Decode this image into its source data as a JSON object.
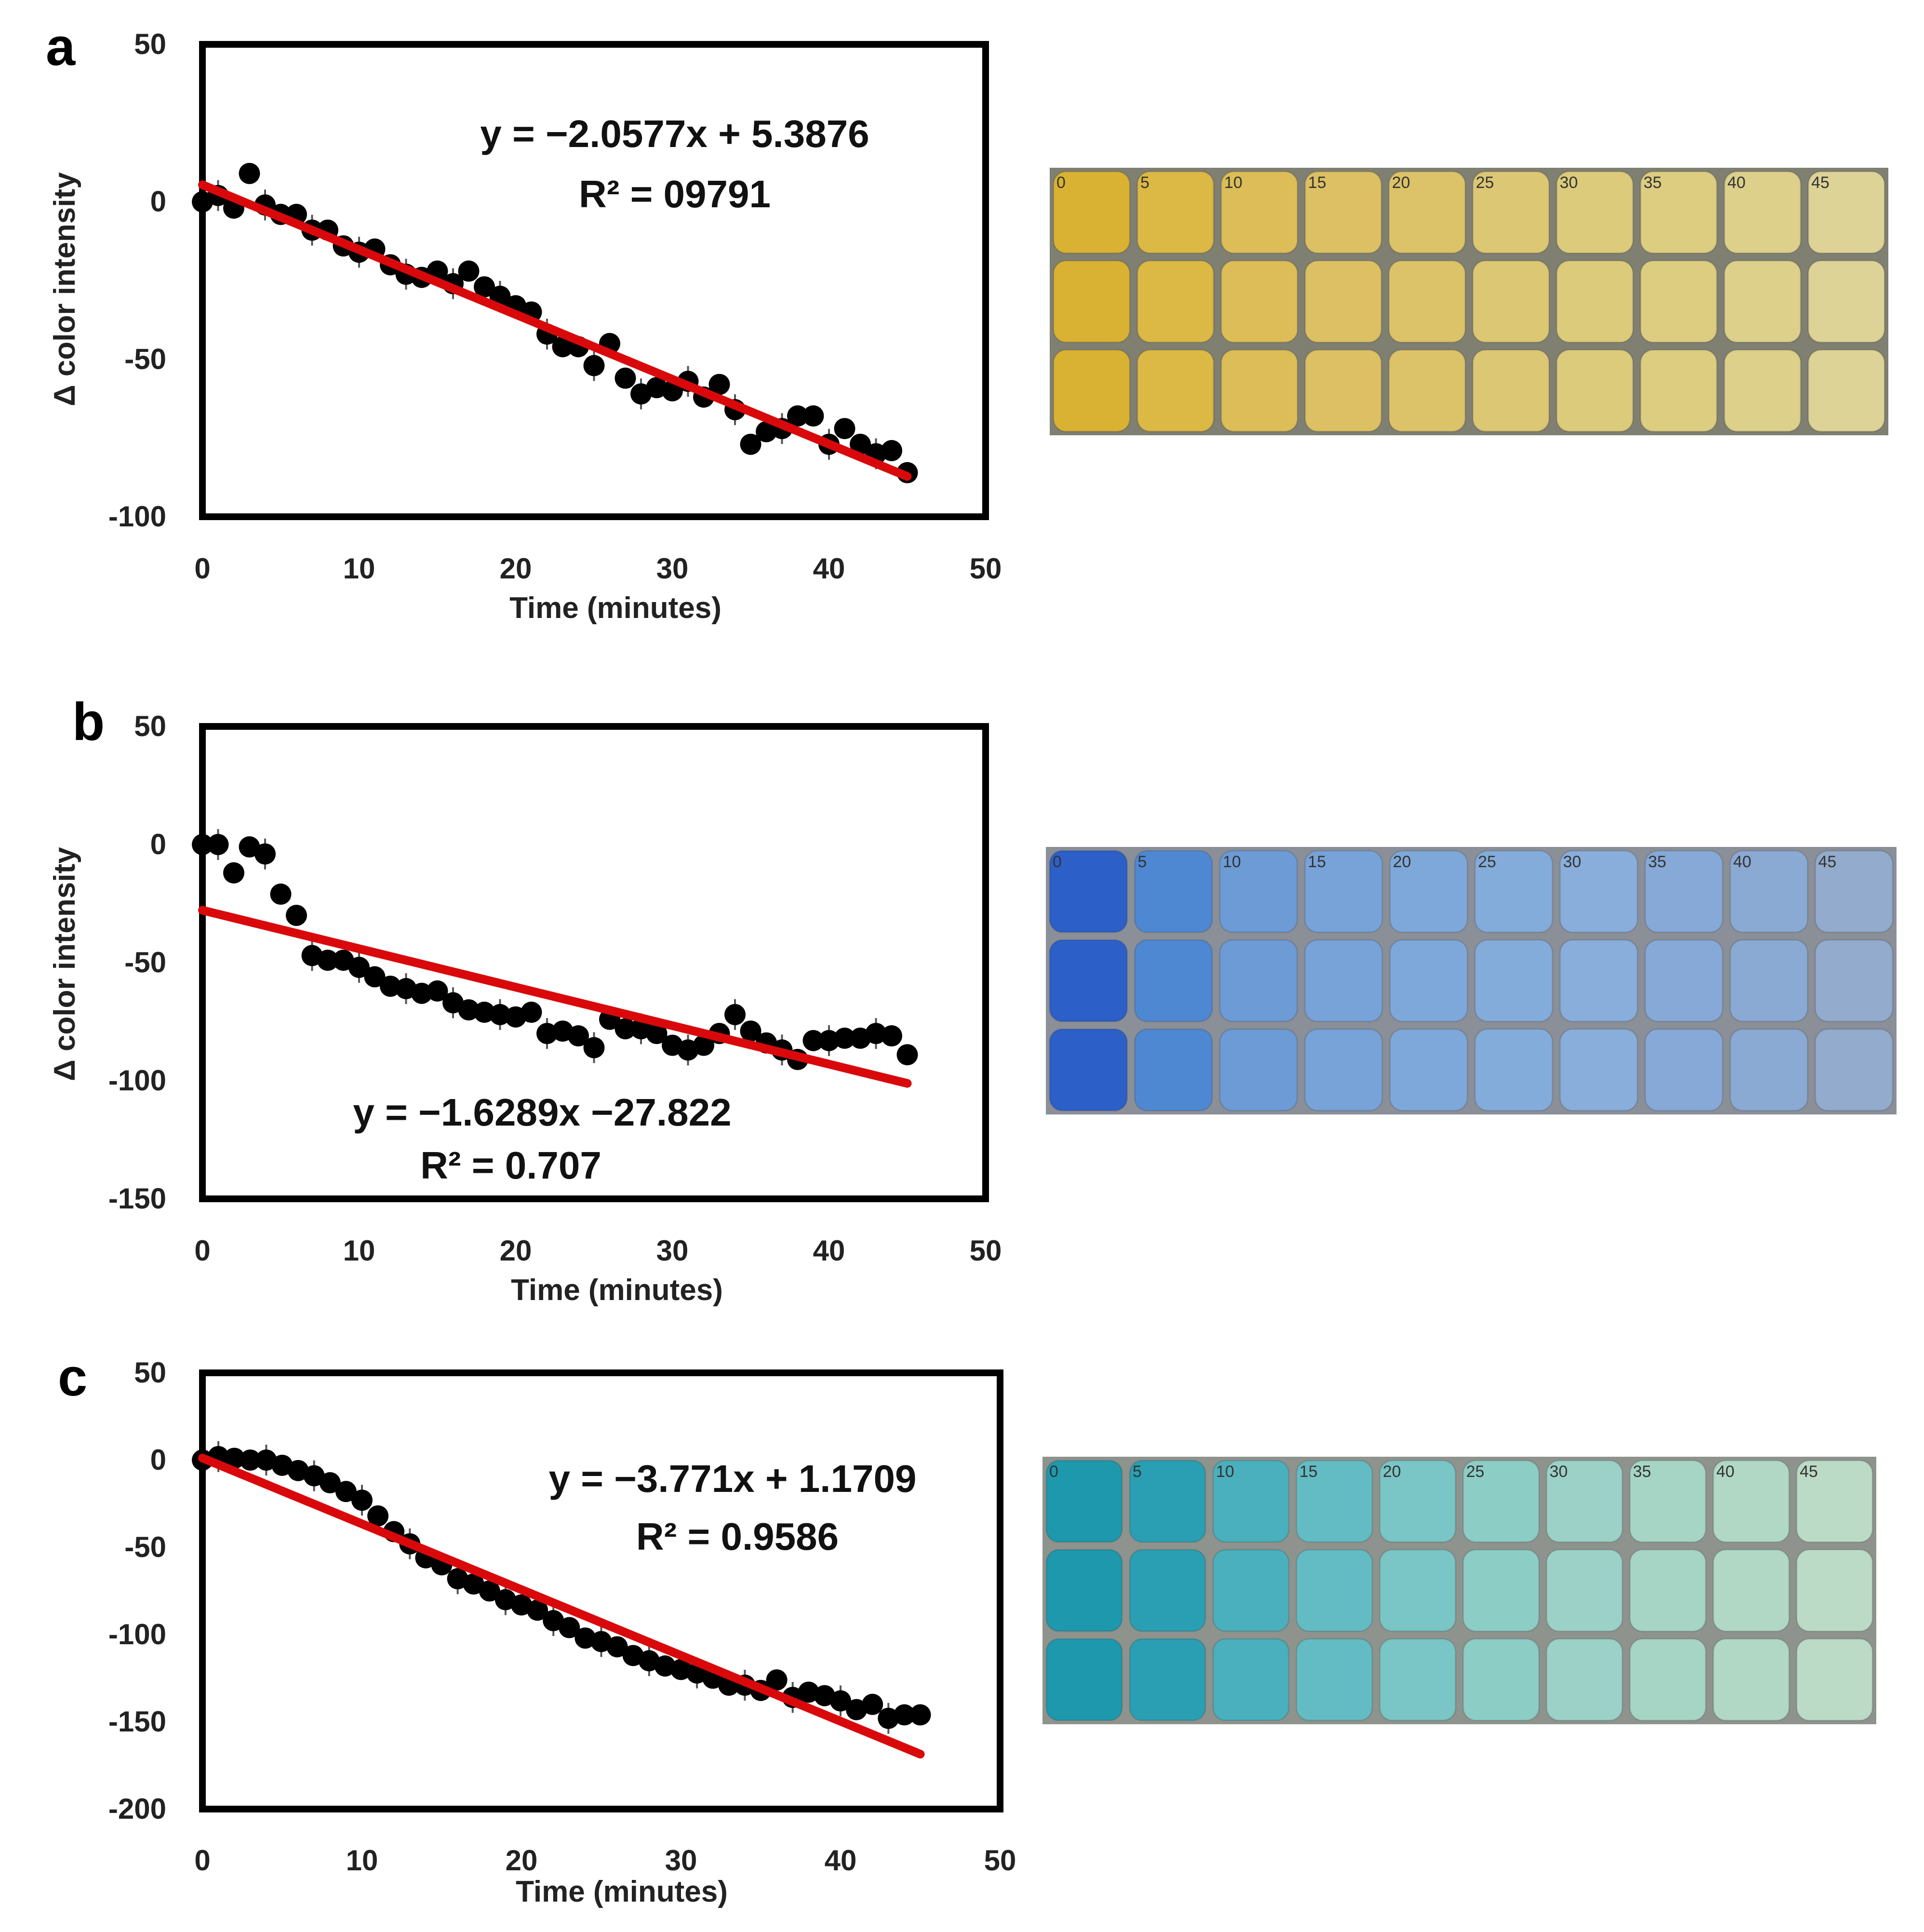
{
  "chart_data": [
    {
      "type": "scatter",
      "letter": "a",
      "title": "",
      "xlabel": "Time (minutes)",
      "ylabel": "Δ color intensity",
      "xlim": [
        0,
        50
      ],
      "ylim": [
        -100,
        50
      ],
      "xticks": [
        0,
        10,
        20,
        30,
        40,
        50
      ],
      "yticks": [
        50,
        0,
        -50,
        -100
      ],
      "equation": "y = −2.0577x + 5.3876",
      "r2": "R² = 09791",
      "trend": {
        "slope": -2.0577,
        "intercept": 5.3876,
        "x0": 0,
        "x1": 45
      },
      "series": [
        {
          "name": "Δ color intensity",
          "x": [
            0,
            1,
            2,
            3,
            4,
            5,
            6,
            7,
            8,
            9,
            10,
            11,
            12,
            13,
            14,
            15,
            16,
            17,
            18,
            19,
            20,
            21,
            22,
            23,
            24,
            25,
            26,
            27,
            28,
            29,
            30,
            31,
            32,
            33,
            34,
            35,
            36,
            37,
            38,
            39,
            40,
            41,
            42,
            43,
            44,
            45
          ],
          "y": [
            0,
            2,
            -2,
            9,
            -1,
            -4,
            -4,
            -9,
            -9,
            -14,
            -16,
            -15,
            -20,
            -23,
            -24,
            -22,
            -26,
            -22,
            -27,
            -30,
            -33,
            -35,
            -42,
            -46,
            -46,
            -52,
            -45,
            -56,
            -61,
            -59,
            -60,
            -57,
            -62,
            -58,
            -66,
            -77,
            -73,
            -72,
            -68,
            -68,
            -77,
            -72,
            -77,
            -80,
            -79,
            -86
          ]
        }
      ]
    },
    {
      "type": "scatter",
      "letter": "b",
      "title": "",
      "xlabel": "Time (minutes)",
      "ylabel": "Δ color intensity",
      "xlim": [
        0,
        50
      ],
      "ylim": [
        -150,
        50
      ],
      "xticks": [
        0,
        10,
        20,
        30,
        40,
        50
      ],
      "yticks": [
        50,
        0,
        -50,
        -100,
        -150
      ],
      "equation": "y = −1.6289x −27.822",
      "r2": "R² = 0.707",
      "trend": {
        "slope": -1.6289,
        "intercept": -27.822,
        "x0": 0,
        "x1": 45
      },
      "series": [
        {
          "name": "Δ color intensity",
          "x": [
            0,
            1,
            2,
            3,
            4,
            5,
            6,
            7,
            8,
            9,
            10,
            11,
            12,
            13,
            14,
            15,
            16,
            17,
            18,
            19,
            20,
            21,
            22,
            23,
            24,
            25,
            26,
            27,
            28,
            29,
            30,
            31,
            32,
            33,
            34,
            35,
            36,
            37,
            38,
            39,
            40,
            41,
            42,
            43,
            44,
            45
          ],
          "y": [
            0,
            0,
            -12,
            -1,
            -4,
            -21,
            -30,
            -47,
            -49,
            -49,
            -52,
            -56,
            -60,
            -61,
            -63,
            -62,
            -67,
            -70,
            -71,
            -72,
            -73,
            -71,
            -80,
            -79,
            -81,
            -86,
            -74,
            -78,
            -78,
            -80,
            -85,
            -87,
            -85,
            -80,
            -72,
            -79,
            -84,
            -87,
            -91,
            -83,
            -83,
            -82,
            -82,
            -80,
            -81,
            -89
          ]
        }
      ]
    },
    {
      "type": "scatter",
      "letter": "c",
      "title": "",
      "xlabel": "Time (minutes)",
      "ylabel": "",
      "xlim": [
        0,
        50
      ],
      "ylim": [
        -200,
        50
      ],
      "xticks": [
        0,
        10,
        20,
        30,
        40,
        50
      ],
      "yticks": [
        50,
        0,
        -50,
        -100,
        -150,
        -200
      ],
      "equation": "y = −3.771x + 1.1709",
      "r2": "R² = 0.9586",
      "trend": {
        "slope": -3.771,
        "intercept": 1.1709,
        "x0": 0,
        "x1": 45
      },
      "series": [
        {
          "name": "Δ color intensity",
          "x": [
            0,
            1,
            2,
            3,
            4,
            5,
            6,
            7,
            8,
            9,
            10,
            11,
            12,
            13,
            14,
            15,
            16,
            17,
            18,
            19,
            20,
            21,
            22,
            23,
            24,
            25,
            26,
            27,
            28,
            29,
            30,
            31,
            32,
            33,
            34,
            35,
            36,
            37,
            38,
            39,
            40,
            41,
            42,
            43,
            44,
            45
          ],
          "y": [
            0,
            2,
            1,
            0,
            0,
            -3,
            -6,
            -9,
            -13,
            -18,
            -23,
            -32,
            -41,
            -48,
            -56,
            -60,
            -68,
            -71,
            -75,
            -80,
            -83,
            -86,
            -92,
            -96,
            -102,
            -104,
            -107,
            -112,
            -115,
            -118,
            -120,
            -122,
            -125,
            -129,
            -129,
            -132,
            -126,
            -136,
            -133,
            -135,
            -138,
            -143,
            -140,
            -148,
            -146,
            -146
          ]
        }
      ]
    }
  ],
  "photos": [
    {
      "name": "yellow",
      "labels": [
        "0",
        "5",
        "10",
        "15",
        "20",
        "25",
        "30",
        "35",
        "40",
        "45"
      ],
      "background": "#7f7f72",
      "colors": [
        "#d9b233",
        "#dcb845",
        "#dcbd57",
        "#dcc063",
        "#dcc269",
        "#dcc774",
        "#dccb7b",
        "#dccd80",
        "#dcd08a",
        "#ddd397"
      ]
    },
    {
      "name": "blue",
      "labels": [
        "0",
        "5",
        "10",
        "15",
        "20",
        "25",
        "30",
        "35",
        "40",
        "45"
      ],
      "background": "#8a8f98",
      "colors": [
        "#2c60c8",
        "#4f88d2",
        "#6c9bd6",
        "#77a3d9",
        "#7fa8da",
        "#84acdb",
        "#89aedb",
        "#86a9d8",
        "#8aa9d3",
        "#93abcc"
      ]
    },
    {
      "name": "teal",
      "labels": [
        "0",
        "5",
        "10",
        "15",
        "20",
        "25",
        "30",
        "35",
        "40",
        "45"
      ],
      "background": "#8e938e",
      "colors": [
        "#1e98ac",
        "#2a9fb3",
        "#4ab0bd",
        "#63bcc3",
        "#7ac5c5",
        "#8ccdc6",
        "#9bd1c6",
        "#a6d5c6",
        "#b0d8c5",
        "#bcdbc6"
      ]
    }
  ],
  "colors": {
    "trend": "#d9090b",
    "marker": "#000000",
    "frame": "#000000"
  }
}
